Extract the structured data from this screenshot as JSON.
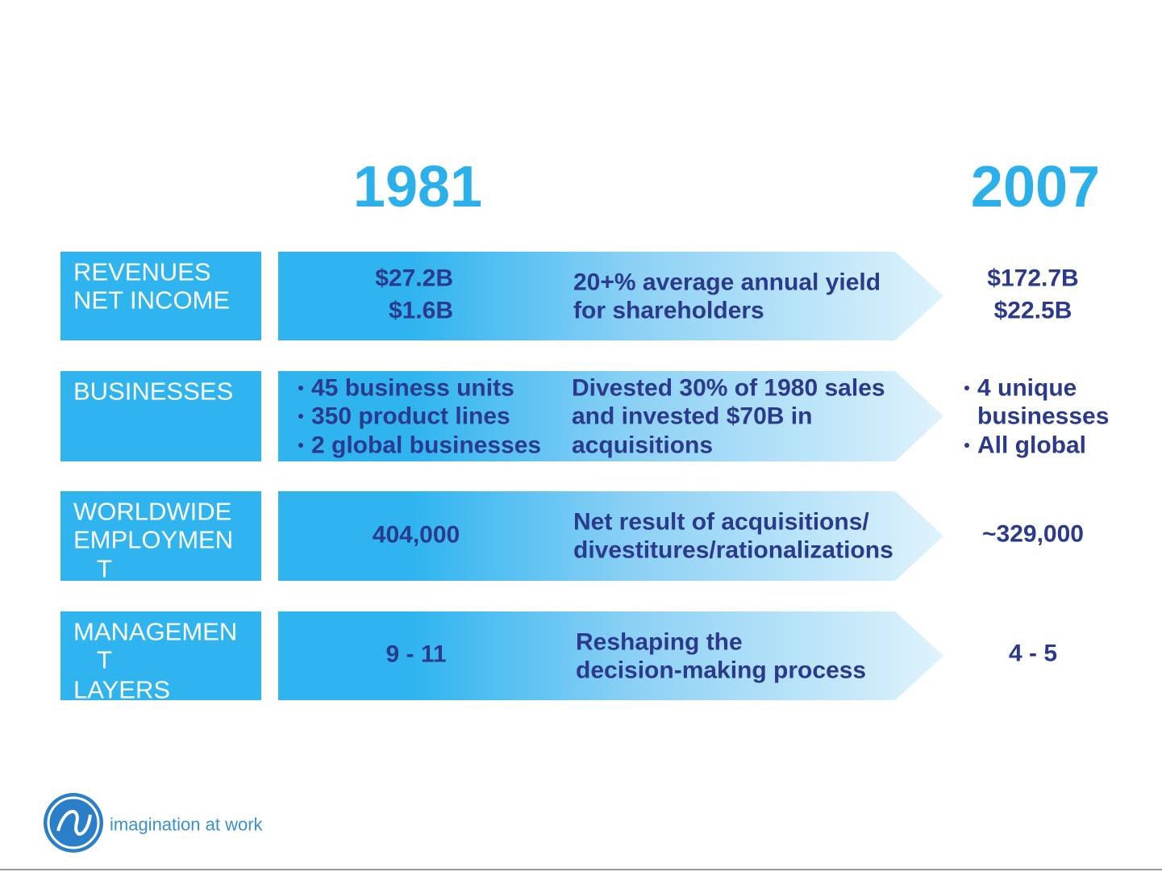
{
  "header": {
    "year_from": "1981",
    "year_to": "2007"
  },
  "rows": [
    {
      "label": [
        "REVENUES",
        "NET INCOME"
      ],
      "from": [
        "$27.2B",
        "$1.6B"
      ],
      "change": [
        "20+% average annual yield",
        "for shareholders"
      ],
      "to": [
        "$172.7B",
        "$22.5B"
      ]
    },
    {
      "label": [
        "BUSINESSES"
      ],
      "from": [
        "45 business units",
        "350 product lines",
        "2 global businesses"
      ],
      "change": [
        "Divested 30% of 1980 sales",
        "and invested $70B in",
        "acquisitions"
      ],
      "to": [
        "4 unique",
        "businesses",
        "All global"
      ]
    },
    {
      "label": [
        "WORLDWIDE",
        "EMPLOYMEN",
        "T"
      ],
      "from": [
        "404,000"
      ],
      "change": [
        "Net result of acquisitions/",
        "divestitures/rationalizations"
      ],
      "to": [
        "~329,000"
      ]
    },
    {
      "label": [
        "MANAGEMEN",
        "T",
        "LAYERS"
      ],
      "from": [
        "9 - 11"
      ],
      "change": [
        "Reshaping the",
        "decision-making process"
      ],
      "to": [
        "4 - 5"
      ]
    }
  ],
  "footer": {
    "tagline": "imagination at work"
  }
}
